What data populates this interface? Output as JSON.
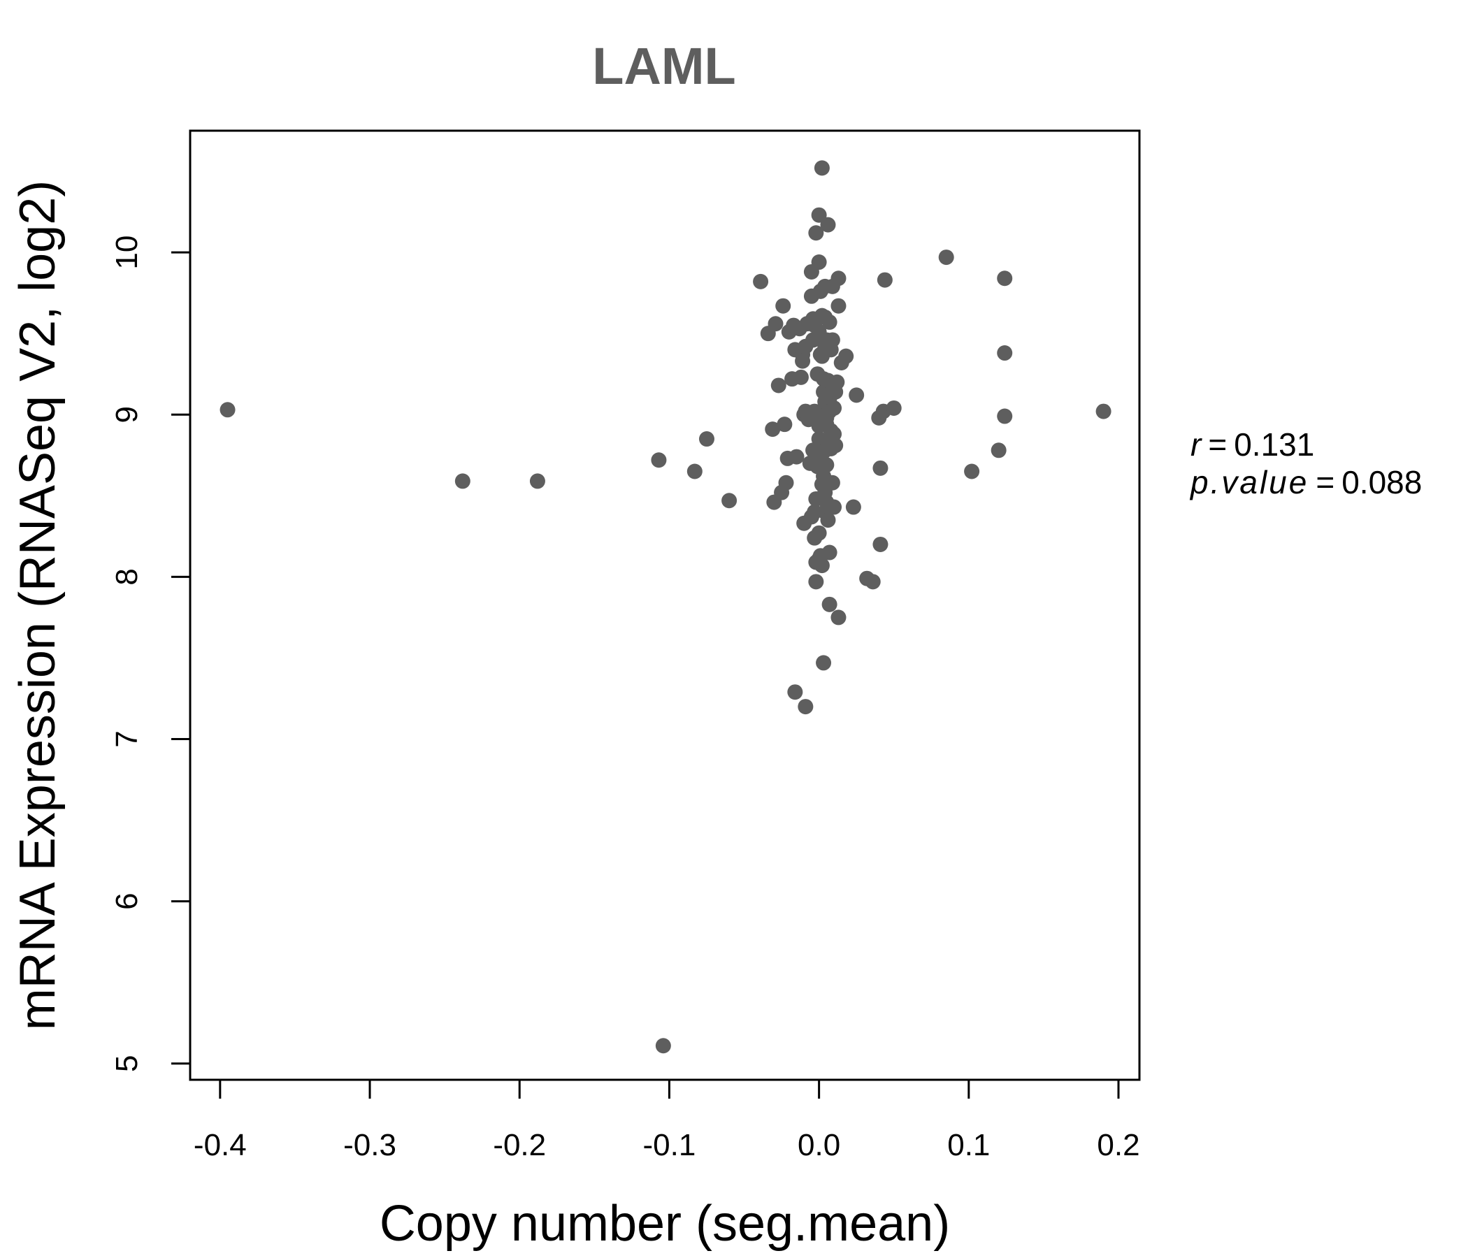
{
  "chart_data": {
    "type": "scatter",
    "title": "LAML",
    "xlabel": "Copy number (seg.mean)",
    "ylabel": "mRNA Expression (RNASeq V2, log2)",
    "xlim": [
      -0.42,
      0.214
    ],
    "ylim": [
      4.9,
      10.75
    ],
    "x_ticks": [
      -0.4,
      -0.3,
      -0.2,
      -0.1,
      0.0,
      0.1,
      0.2
    ],
    "x_tick_labels": [
      "-0.4",
      "-0.3",
      "-0.2",
      "-0.1",
      "0.0",
      "0.1",
      "0.2"
    ],
    "y_ticks": [
      5,
      6,
      7,
      8,
      9,
      10
    ],
    "y_tick_labels": [
      "5",
      "6",
      "7",
      "8",
      "9",
      "10"
    ],
    "grid": false,
    "point_color": "#5e5e5e",
    "stats": {
      "r_label": "r",
      "r_value": "0.131",
      "p_label": "p.value",
      "p_value": "0.088"
    },
    "points": [
      [
        -0.395,
        9.03
      ],
      [
        -0.238,
        8.59
      ],
      [
        -0.188,
        8.59
      ],
      [
        -0.107,
        8.72
      ],
      [
        -0.104,
        5.11
      ],
      [
        -0.083,
        8.65
      ],
      [
        -0.075,
        8.85
      ],
      [
        -0.06,
        8.47
      ],
      [
        -0.039,
        9.82
      ],
      [
        -0.034,
        9.5
      ],
      [
        -0.031,
        8.91
      ],
      [
        -0.03,
        8.46
      ],
      [
        -0.029,
        9.56
      ],
      [
        -0.027,
        9.18
      ],
      [
        -0.025,
        8.52
      ],
      [
        -0.024,
        9.67
      ],
      [
        -0.023,
        8.94
      ],
      [
        -0.022,
        8.58
      ],
      [
        -0.021,
        8.73
      ],
      [
        -0.02,
        9.51
      ],
      [
        -0.018,
        9.22
      ],
      [
        -0.017,
        9.55
      ],
      [
        -0.016,
        9.4
      ],
      [
        -0.016,
        7.29
      ],
      [
        -0.015,
        8.74
      ],
      [
        -0.013,
        9.53
      ],
      [
        -0.012,
        9.23
      ],
      [
        -0.011,
        9.37
      ],
      [
        -0.011,
        9.33
      ],
      [
        -0.01,
        9.0
      ],
      [
        -0.01,
        8.33
      ],
      [
        -0.009,
        9.42
      ],
      [
        -0.009,
        9.02
      ],
      [
        -0.009,
        7.2
      ],
      [
        -0.008,
        9.56
      ],
      [
        -0.007,
        8.97
      ],
      [
        -0.006,
        8.7
      ],
      [
        -0.005,
        9.88
      ],
      [
        -0.005,
        9.73
      ],
      [
        -0.005,
        8.37
      ],
      [
        -0.004,
        9.59
      ],
      [
        -0.004,
        9.46
      ],
      [
        -0.004,
        8.78
      ],
      [
        -0.003,
        9.55
      ],
      [
        -0.003,
        9.02
      ],
      [
        -0.003,
        8.4
      ],
      [
        -0.003,
        8.24
      ],
      [
        -0.002,
        10.12
      ],
      [
        -0.002,
        8.48
      ],
      [
        -0.002,
        8.09
      ],
      [
        -0.002,
        7.97
      ],
      [
        -0.001,
        9.25
      ],
      [
        -0.001,
        8.68
      ],
      [
        0.0,
        10.23
      ],
      [
        0.0,
        9.94
      ],
      [
        0.0,
        9.51
      ],
      [
        0.0,
        9.0
      ],
      [
        0.0,
        8.93
      ],
      [
        0.0,
        8.85
      ],
      [
        0.0,
        8.27
      ],
      [
        0.0,
        8.11
      ],
      [
        0.001,
        9.76
      ],
      [
        0.001,
        9.37
      ],
      [
        0.001,
        8.72
      ],
      [
        0.001,
        8.13
      ],
      [
        0.002,
        10.52
      ],
      [
        0.002,
        9.61
      ],
      [
        0.002,
        9.36
      ],
      [
        0.002,
        8.07
      ],
      [
        0.002,
        8.57
      ],
      [
        0.003,
        9.22
      ],
      [
        0.003,
        9.14
      ],
      [
        0.003,
        8.77
      ],
      [
        0.003,
        8.62
      ],
      [
        0.003,
        7.47
      ],
      [
        0.004,
        9.79
      ],
      [
        0.004,
        9.6
      ],
      [
        0.004,
        9.41
      ],
      [
        0.004,
        9.08
      ],
      [
        0.004,
        8.52
      ],
      [
        0.004,
        8.4
      ],
      [
        0.005,
        9.46
      ],
      [
        0.005,
        8.98
      ],
      [
        0.005,
        8.94
      ],
      [
        0.005,
        8.69
      ],
      [
        0.005,
        8.46
      ],
      [
        0.006,
        10.17
      ],
      [
        0.006,
        9.21
      ],
      [
        0.006,
        8.83
      ],
      [
        0.006,
        8.35
      ],
      [
        0.007,
        9.57
      ],
      [
        0.007,
        9.1
      ],
      [
        0.007,
        9.02
      ],
      [
        0.007,
        8.15
      ],
      [
        0.007,
        7.83
      ],
      [
        0.008,
        9.4
      ],
      [
        0.008,
        8.9
      ],
      [
        0.008,
        8.79
      ],
      [
        0.009,
        9.79
      ],
      [
        0.009,
        9.46
      ],
      [
        0.009,
        9.18
      ],
      [
        0.009,
        8.58
      ],
      [
        0.01,
        9.04
      ],
      [
        0.01,
        8.88
      ],
      [
        0.01,
        8.43
      ],
      [
        0.011,
        8.81
      ],
      [
        0.011,
        9.14
      ],
      [
        0.012,
        9.2
      ],
      [
        0.013,
        9.84
      ],
      [
        0.013,
        9.67
      ],
      [
        0.013,
        7.75
      ],
      [
        0.015,
        9.32
      ],
      [
        0.018,
        9.36
      ],
      [
        0.023,
        8.43
      ],
      [
        0.025,
        9.12
      ],
      [
        0.032,
        7.99
      ],
      [
        0.036,
        7.97
      ],
      [
        0.04,
        8.98
      ],
      [
        0.041,
        8.67
      ],
      [
        0.041,
        8.2
      ],
      [
        0.043,
        9.02
      ],
      [
        0.044,
        9.83
      ],
      [
        0.05,
        9.04
      ],
      [
        0.085,
        9.97
      ],
      [
        0.102,
        8.65
      ],
      [
        0.12,
        8.78
      ],
      [
        0.124,
        9.84
      ],
      [
        0.124,
        9.38
      ],
      [
        0.124,
        8.99
      ],
      [
        0.19,
        9.02
      ]
    ]
  }
}
